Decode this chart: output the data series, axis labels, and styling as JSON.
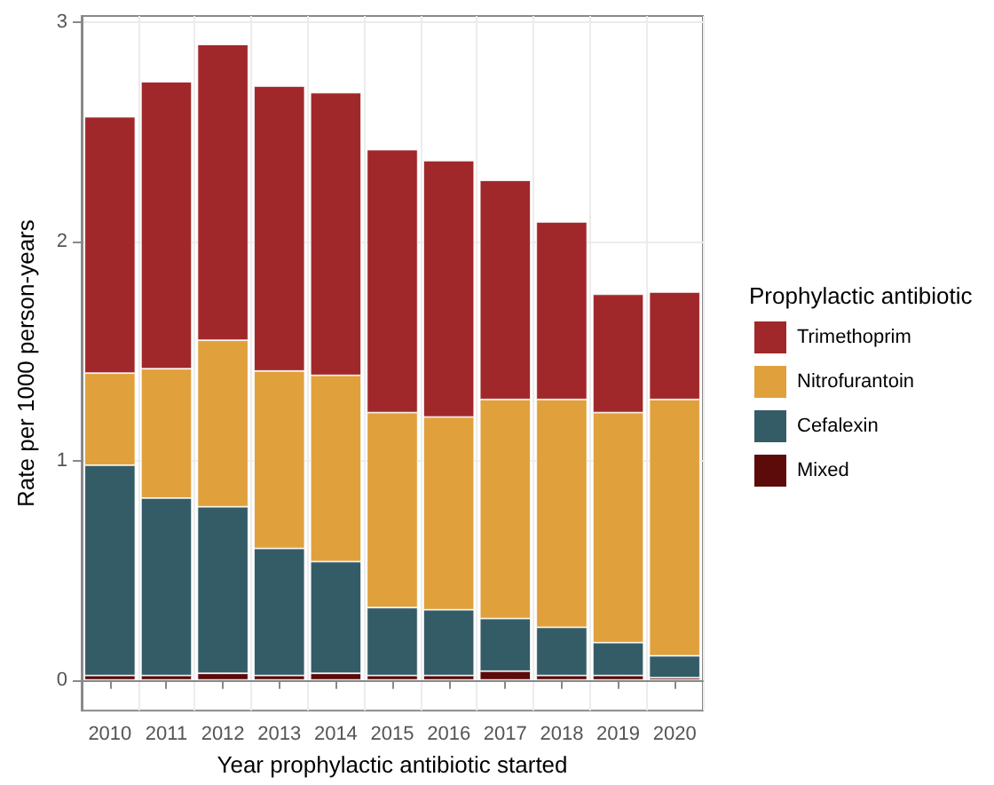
{
  "chart_data": {
    "type": "bar",
    "xlabel": "Year prophylactic antibiotic started",
    "ylabel": "Rate per 1000 person-years",
    "legend_title": "Prophylactic antibiotic",
    "categories": [
      "2010",
      "2011",
      "2012",
      "2013",
      "2014",
      "2015",
      "2016",
      "2017",
      "2018",
      "2019",
      "2020"
    ],
    "stacked": true,
    "series": [
      {
        "name": "Mixed",
        "color": "#5c0a0a",
        "values": [
          0.02,
          0.02,
          0.03,
          0.02,
          0.03,
          0.02,
          0.02,
          0.04,
          0.02,
          0.02,
          0.01
        ]
      },
      {
        "name": "Cefalexin",
        "color": "#335c67",
        "values": [
          0.96,
          0.81,
          0.76,
          0.58,
          0.51,
          0.31,
          0.3,
          0.24,
          0.22,
          0.15,
          0.1
        ]
      },
      {
        "name": "Nitrofurantoin",
        "color": "#e0a03c",
        "values": [
          0.42,
          0.59,
          0.76,
          0.81,
          0.85,
          0.89,
          0.88,
          1.0,
          1.04,
          1.05,
          1.17
        ]
      },
      {
        "name": "Trimethoprim",
        "color": "#a0282a",
        "values": [
          1.17,
          1.31,
          1.35,
          1.3,
          1.29,
          1.2,
          1.17,
          1.0,
          0.81,
          0.54,
          0.49
        ]
      }
    ],
    "ylim": [
      -0.14,
      3.03
    ],
    "yticks": [
      0,
      1,
      2,
      3
    ],
    "grid": true,
    "legend": "right"
  }
}
